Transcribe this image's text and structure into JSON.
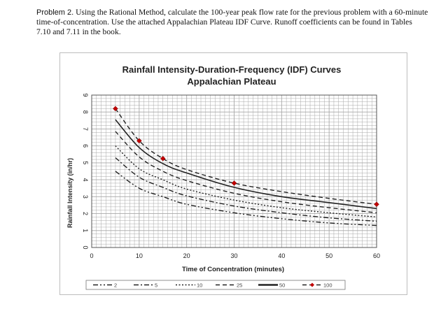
{
  "problem": {
    "lead": "Problem 2.",
    "text": "Using the Rational Method, calculate the 100-year peak flow rate for the previous problem with a 60-minute time-of-concentration. Use the attached Appalachian Plateau IDF Curve. Runoff coefficients can be found in Tables 7.10 and 7.11 in the book."
  },
  "chart_data": {
    "type": "line",
    "title": "Rainfall Intensity-Duration-Frequency (IDF) Curves",
    "subtitle": "Appalachian Plateau",
    "xlabel": "Time of Concentration (minutes)",
    "ylabel": "Rainfall Intensity (in/hr)",
    "xlim": [
      0,
      60
    ],
    "ylim": [
      0,
      9
    ],
    "x_ticks": [
      "0",
      "10",
      "20",
      "30",
      "40",
      "50",
      "60"
    ],
    "y_ticks": [
      "0",
      "1",
      "2",
      "3",
      "4",
      "5",
      "6",
      "7",
      "8",
      "9"
    ],
    "grid": true,
    "series": [
      {
        "name": "2",
        "style": "dash-dot-dot",
        "x": [
          5,
          10,
          15,
          20,
          30,
          40,
          50,
          60
        ],
        "values": [
          4.5,
          3.5,
          3.0,
          2.55,
          2.05,
          1.7,
          1.45,
          1.3
        ]
      },
      {
        "name": "5",
        "style": "dash-dot",
        "x": [
          5,
          10,
          15,
          20,
          30,
          40,
          50,
          60
        ],
        "values": [
          5.3,
          4.15,
          3.55,
          3.05,
          2.45,
          2.05,
          1.75,
          1.55
        ]
      },
      {
        "name": "10",
        "style": "dotted",
        "x": [
          5,
          10,
          15,
          20,
          30,
          40,
          50,
          60
        ],
        "values": [
          6.0,
          4.65,
          4.0,
          3.45,
          2.8,
          2.35,
          2.05,
          1.8
        ]
      },
      {
        "name": "25",
        "style": "dashed",
        "x": [
          5,
          10,
          15,
          20,
          30,
          40,
          50,
          60
        ],
        "values": [
          6.85,
          5.35,
          4.5,
          3.95,
          3.2,
          2.7,
          2.35,
          2.05
        ]
      },
      {
        "name": "50",
        "style": "solid",
        "x": [
          5,
          10,
          15,
          20,
          30,
          40,
          50,
          60
        ],
        "values": [
          7.55,
          5.9,
          4.95,
          4.4,
          3.55,
          3.0,
          2.65,
          2.3
        ]
      },
      {
        "name": "100",
        "style": "dash-marker",
        "x": [
          5,
          10,
          15,
          20,
          30,
          40,
          50,
          60
        ],
        "values": [
          8.2,
          6.3,
          5.25,
          4.6,
          3.8,
          3.3,
          2.9,
          2.55
        ],
        "markers_at": [
          5,
          10,
          15,
          30,
          60
        ]
      }
    ],
    "colors": {
      "line": "#222222",
      "marker": "#c00000",
      "grid": "#a8a8a8",
      "plot_border": "#555555"
    }
  }
}
